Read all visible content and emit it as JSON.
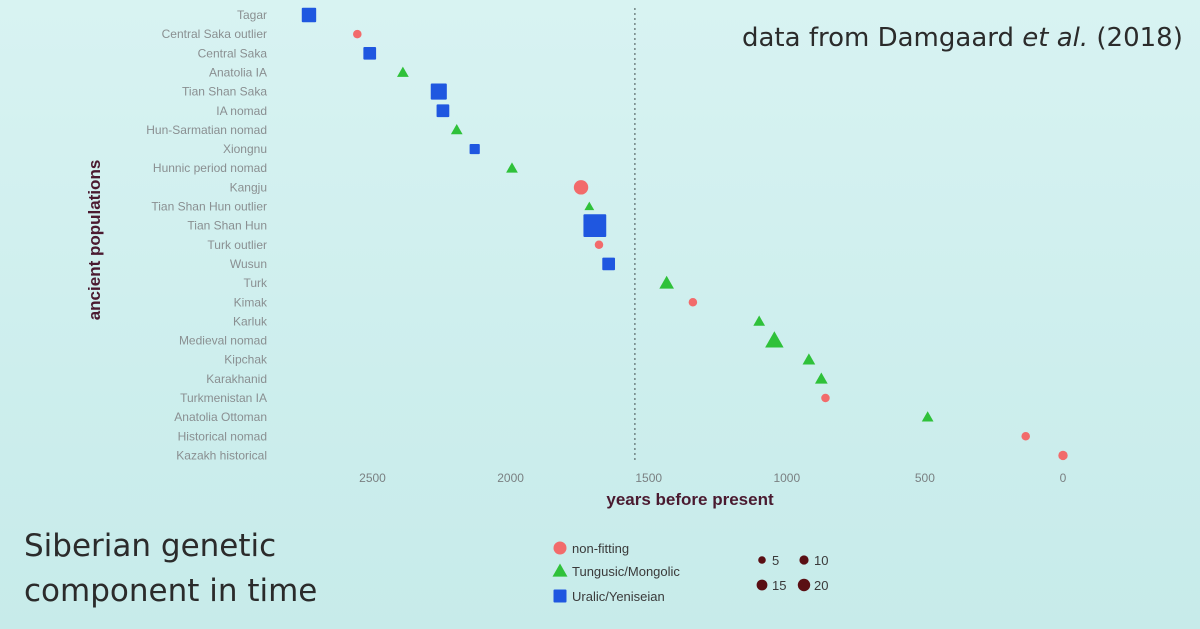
{
  "chart_data": {
    "type": "scatter",
    "title": "",
    "xlabel": "years before present",
    "ylabel": "ancient populations",
    "x_reversed": true,
    "xlim": [
      2800,
      -30
    ],
    "x_ticks": [
      2500,
      2000,
      1500,
      1000,
      500,
      0
    ],
    "reference_line_x": 1550,
    "categories": [
      "Tagar",
      "Central Saka outlier",
      "Central Saka",
      "Anatolia IA",
      "Tian Shan Saka",
      "IA nomad",
      "Hun-Sarmatian nomad",
      "Xiongnu",
      "Hunnic period nomad",
      "Kangju",
      "Tian Shan Hun outlier",
      "Tian Shan Hun",
      "Turk outlier",
      "Wusun",
      "Turk",
      "Kimak",
      "Karluk",
      "Medieval nomad",
      "Kipchak",
      "Karakhanid",
      "Turkmenistan IA",
      "Anatolia Ottoman",
      "Historical nomad",
      "Kazakh historical"
    ],
    "groups": [
      {
        "name": "non-fitting",
        "shape": "circle",
        "color": "#f26b6b"
      },
      {
        "name": "Tungusic/Mongolic",
        "shape": "triangle",
        "color": "#2fc13a"
      },
      {
        "name": "Uralic/Yeniseian",
        "shape": "square",
        "color": "#1f57e0"
      }
    ],
    "points": [
      {
        "population": "Tagar",
        "x": 2730,
        "group": "Uralic/Yeniseian",
        "n": 10
      },
      {
        "population": "Central Saka outlier",
        "x": 2555,
        "group": "non-fitting",
        "n": 3
      },
      {
        "population": "Central Saka",
        "x": 2510,
        "group": "Uralic/Yeniseian",
        "n": 8
      },
      {
        "population": "Anatolia IA",
        "x": 2390,
        "group": "Tungusic/Mongolic",
        "n": 5
      },
      {
        "population": "Tian Shan Saka",
        "x": 2260,
        "group": "Uralic/Yeniseian",
        "n": 12
      },
      {
        "population": "IA nomad",
        "x": 2245,
        "group": "Uralic/Yeniseian",
        "n": 8
      },
      {
        "population": "Hun-Sarmatian nomad",
        "x": 2195,
        "group": "Tungusic/Mongolic",
        "n": 5
      },
      {
        "population": "Xiongnu",
        "x": 2130,
        "group": "Uralic/Yeniseian",
        "n": 5
      },
      {
        "population": "Hunnic period nomad",
        "x": 1995,
        "group": "Tungusic/Mongolic",
        "n": 5
      },
      {
        "population": "Kangju",
        "x": 1745,
        "group": "non-fitting",
        "n": 10
      },
      {
        "population": "Tian Shan Hun outlier",
        "x": 1715,
        "group": "Tungusic/Mongolic",
        "n": 3
      },
      {
        "population": "Tian Shan Hun",
        "x": 1695,
        "group": "Uralic/Yeniseian",
        "n": 20
      },
      {
        "population": "Turk outlier",
        "x": 1680,
        "group": "non-fitting",
        "n": 3
      },
      {
        "population": "Wusun",
        "x": 1645,
        "group": "Uralic/Yeniseian",
        "n": 8
      },
      {
        "population": "Turk",
        "x": 1435,
        "group": "Tungusic/Mongolic",
        "n": 8
      },
      {
        "population": "Kimak",
        "x": 1340,
        "group": "non-fitting",
        "n": 3
      },
      {
        "population": "Karluk",
        "x": 1100,
        "group": "Tungusic/Mongolic",
        "n": 5
      },
      {
        "population": "Medieval nomad",
        "x": 1045,
        "group": "Tungusic/Mongolic",
        "n": 12
      },
      {
        "population": "Kipchak",
        "x": 920,
        "group": "Tungusic/Mongolic",
        "n": 6
      },
      {
        "population": "Karakhanid",
        "x": 875,
        "group": "Tungusic/Mongolic",
        "n": 6
      },
      {
        "population": "Turkmenistan IA",
        "x": 860,
        "group": "non-fitting",
        "n": 3
      },
      {
        "population": "Anatolia Ottoman",
        "x": 490,
        "group": "Tungusic/Mongolic",
        "n": 5
      },
      {
        "population": "Historical nomad",
        "x": 135,
        "group": "non-fitting",
        "n": 3
      },
      {
        "population": "Kazakh historical",
        "x": 0,
        "group": "non-fitting",
        "n": 4
      }
    ],
    "size_legend": [
      5,
      10,
      15,
      20
    ],
    "legend_placement": "bottom-center",
    "grid": false
  },
  "annotation": {
    "pre": "data from Damgaard ",
    "italic": "et al.",
    "post": " (2018)"
  },
  "caption": {
    "line1": "Siberian genetic",
    "line2": "component in time"
  }
}
